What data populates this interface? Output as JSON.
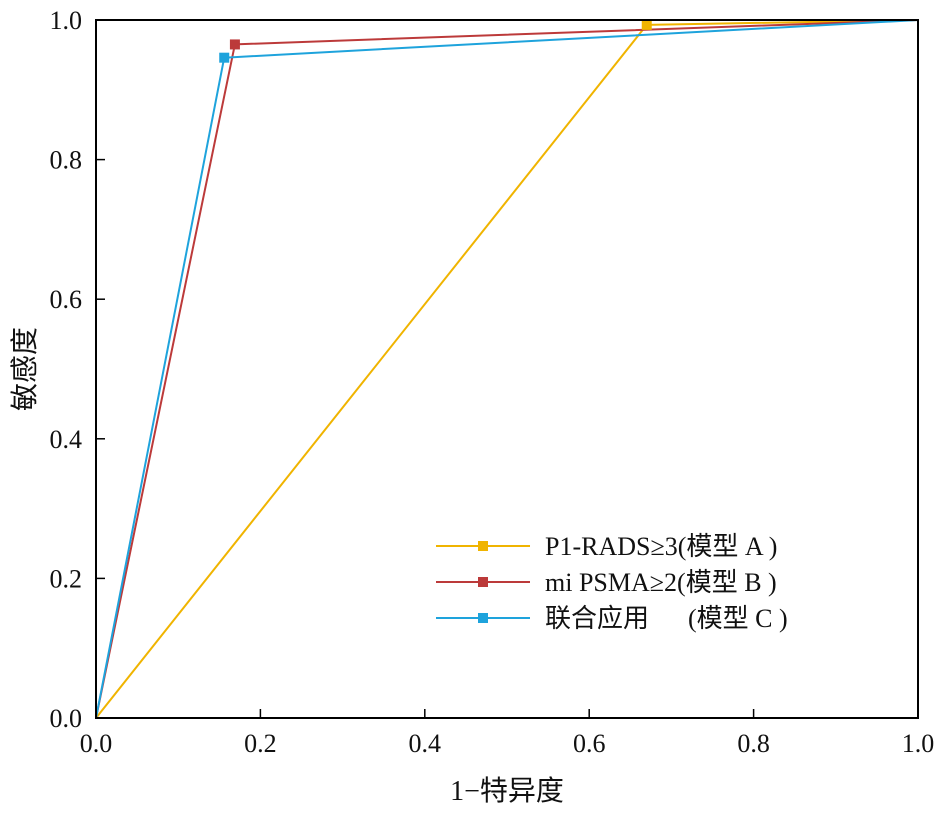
{
  "chart_data": {
    "type": "line",
    "xlabel": "1−特异度",
    "ylabel": "敏感度",
    "xlim": [
      0,
      1
    ],
    "ylim": [
      0,
      1
    ],
    "xticks": [
      "0.0",
      "0.2",
      "0.4",
      "0.6",
      "0.8",
      "1.0"
    ],
    "yticks": [
      "0.0",
      "0.2",
      "0.4",
      "0.6",
      "0.8",
      "1.0"
    ],
    "grid": false,
    "legend_position": "bottom-right",
    "series": [
      {
        "name": "P1-RADS≥3(模型 A )",
        "color": "#F0B400",
        "x": [
          0,
          0.67,
          1
        ],
        "y": [
          0,
          0.993,
          1
        ]
      },
      {
        "name": "mi PSMA≥2(模型 B )",
        "color": "#BC3A3A",
        "x": [
          0,
          0.169,
          1
        ],
        "y": [
          0,
          0.965,
          1
        ]
      },
      {
        "name": "联合应用      (模型 C )",
        "color": "#1EA3DC",
        "x": [
          0,
          0.156,
          1
        ],
        "y": [
          0,
          0.946,
          1
        ]
      }
    ]
  }
}
